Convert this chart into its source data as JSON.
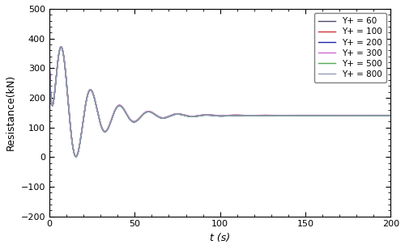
{
  "title": "",
  "xlabel": "t (s)",
  "ylabel": "Resistance(kN)",
  "xlim": [
    0,
    200
  ],
  "ylim": [
    -200,
    500
  ],
  "yticks": [
    -200,
    -100,
    0,
    100,
    200,
    300,
    400,
    500
  ],
  "xticks": [
    0,
    50,
    100,
    150,
    200
  ],
  "legend_entries": [
    "Y+ = 60",
    "Y+ = 100",
    "Y+ = 200",
    "Y+ = 300",
    "Y+ = 500",
    "Y+ = 800"
  ],
  "line_colors": [
    "#4a4a6a",
    "#cc3333",
    "#2222aa",
    "#cc66cc",
    "#55aa55",
    "#9999bb"
  ],
  "line_widths": [
    1.0,
    1.0,
    1.0,
    1.0,
    1.0,
    1.0
  ],
  "steady_state": 140,
  "osc_period": 17.0,
  "osc_amplitude": 330,
  "osc_decay": 0.055,
  "initial_spike": 500,
  "initial_decay": 0.55,
  "background_color": "#ffffff"
}
